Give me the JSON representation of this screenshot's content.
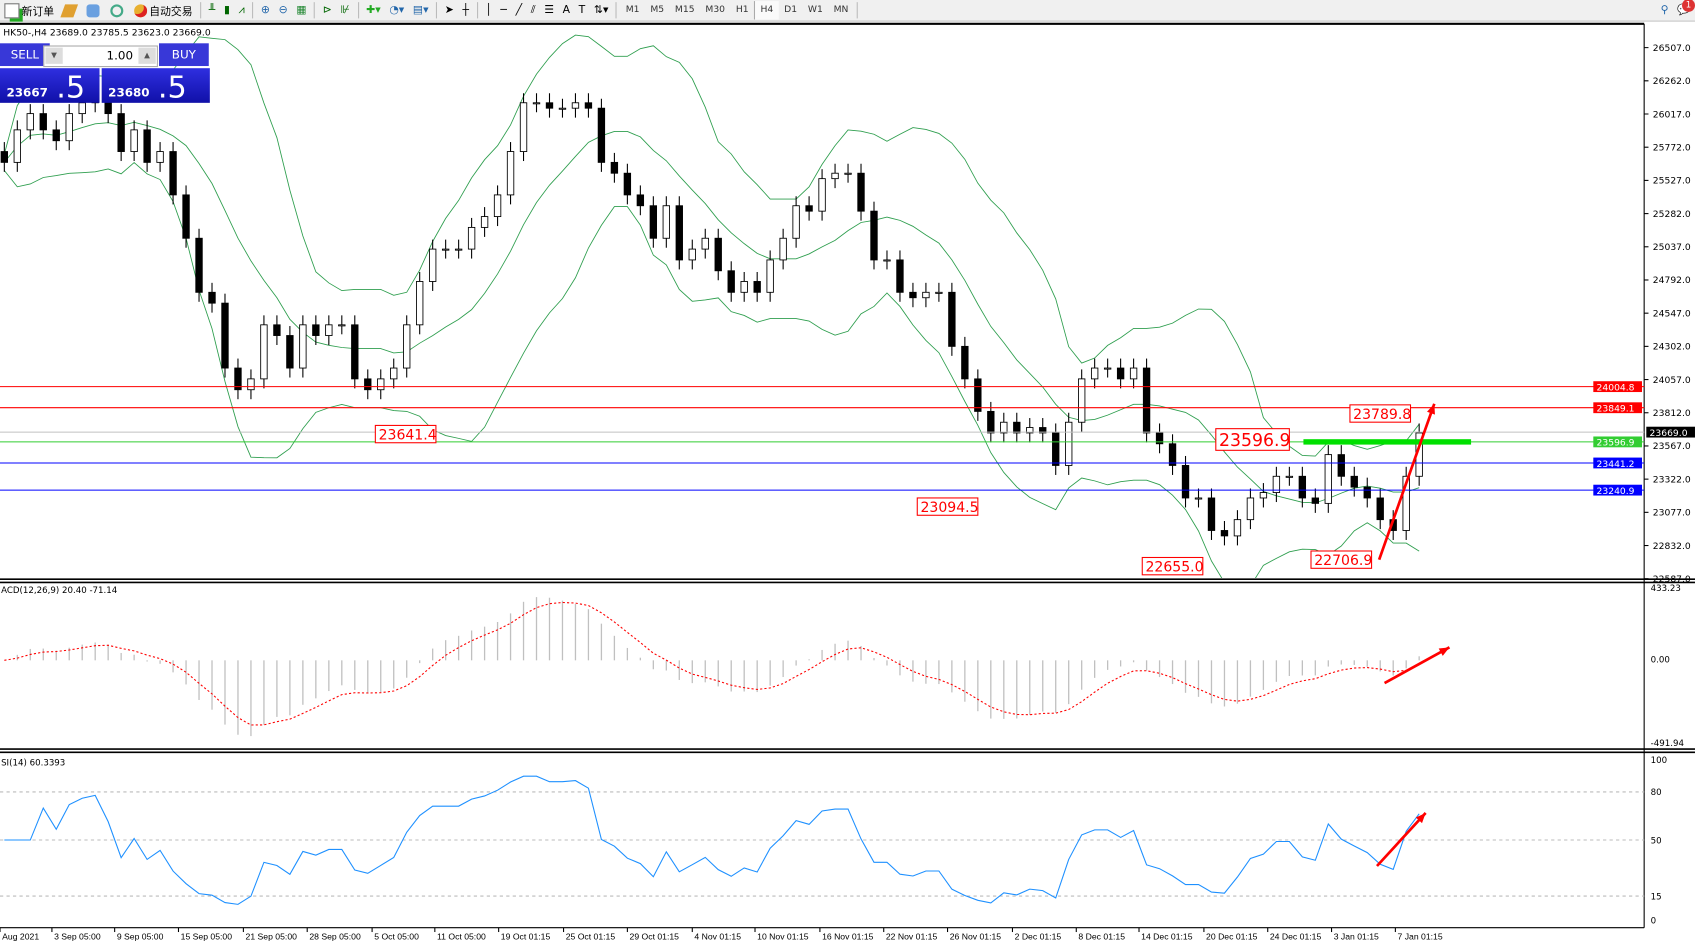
{
  "toolbar": {
    "new_order": "新订单",
    "auto_trading": "自动交易",
    "timeframes": [
      "M1",
      "M5",
      "M15",
      "M30",
      "H1",
      "H4",
      "D1",
      "W1",
      "MN"
    ],
    "active_timeframe": "H4",
    "notification_count": "1"
  },
  "chart": {
    "header": "HK50-,H4  23689.0 23785.5 23623.0 23669.0",
    "trade_panel": {
      "sell_label": "SELL",
      "buy_label": "BUY",
      "lot": "1.00",
      "bid_main": "23667",
      "bid_frac": ".5",
      "ask_main": "23680",
      "ask_frac": ".5"
    },
    "price_axis": [
      "26507.0",
      "26262.0",
      "26017.0",
      "25772.0",
      "25527.0",
      "25282.0",
      "25037.0",
      "24792.0",
      "24547.0",
      "24302.0",
      "24057.0",
      "23812.0",
      "23567.0",
      "23322.0",
      "23077.0",
      "22832.0",
      "22587.0"
    ],
    "horizontal_lines": [
      {
        "price": 24004.8,
        "label": "24004.8",
        "color": "#ff0000"
      },
      {
        "price": 23849.1,
        "label": "23849.1",
        "color": "#ff0000"
      },
      {
        "price": 23669.0,
        "label": "23669.0",
        "color": "#000000",
        "line": "#c0c0c0"
      },
      {
        "price": 23596.9,
        "label": "23596.9",
        "color": "#32cd32"
      },
      {
        "price": 23441.2,
        "label": "23441.2",
        "color": "#0000ff"
      },
      {
        "price": 23240.9,
        "label": "23240.9",
        "color": "#0000ff"
      }
    ],
    "price_labels": [
      {
        "text": "23641.4",
        "price": 23641.4
      },
      {
        "text": "23094.5",
        "price": 23094.5
      },
      {
        "text": "22655.0",
        "price": 22655.0
      },
      {
        "text": "22706.9",
        "price": 22706.9
      },
      {
        "text": "23789.8",
        "price": 23789.8
      },
      {
        "text": "23596.9",
        "price": 23596.9
      }
    ],
    "closes": [
      25660,
      25900,
      26020,
      25900,
      25820,
      26020,
      26100,
      26139,
      26020,
      25740,
      25900,
      25660,
      25740,
      25420,
      25100,
      24701,
      24621,
      24142,
      23982,
      24062,
      24461,
      24382,
      24142,
      24461,
      24382,
      24461,
      24461,
      24062,
      23982,
      24062,
      24142,
      24461,
      24781,
      25020,
      25020,
      25020,
      25180,
      25260,
      25420,
      25740,
      26100,
      26100,
      26060,
      26060,
      26100,
      26060,
      25660,
      25580,
      25420,
      25340,
      25100,
      25340,
      24940,
      25020,
      25100,
      24860,
      24701,
      24781,
      24701,
      24940,
      25100,
      25340,
      25300,
      25540,
      25580,
      25580,
      25300,
      24940,
      24940,
      24701,
      24661,
      24701,
      24701,
      24302,
      24062,
      23822,
      23663,
      23742,
      23663,
      23703,
      23663,
      23423,
      23742,
      24062,
      24142,
      24142,
      24062,
      24142,
      23663,
      23583,
      23423,
      23183,
      23183,
      22943,
      22903,
      23023,
      23183,
      23223,
      23343,
      23343,
      23183,
      23143,
      23503,
      23343,
      23263,
      23183,
      23023,
      22943,
      23343,
      23663
    ],
    "bands": "Bollinger",
    "band_color": "#2e9e4e"
  },
  "macd": {
    "label": "ACD(12,26,9) 20.40 -71.14",
    "max": "433.23",
    "zero": "0.00",
    "min": "-491.94",
    "histogram_color": "#c0c0c0",
    "signal_color": "#ff0000"
  },
  "rsi": {
    "label": "SI(14) 60.3393",
    "levels": [
      "100",
      "80",
      "50",
      "15",
      "0"
    ],
    "line_color": "#1e90ff"
  },
  "time_axis": [
    "Aug 2021",
    "3 Sep 05:00",
    "9 Sep 05:00",
    "15 Sep 05:00",
    "21 Sep 05:00",
    "28 Sep 05:00",
    "5 Oct 05:00",
    "11 Oct 05:00",
    "19 Oct 01:15",
    "25 Oct 01:15",
    "29 Oct 01:15",
    "4 Nov 01:15",
    "10 Nov 01:15",
    "16 Nov 01:15",
    "22 Nov 01:15",
    "26 Nov 01:15",
    "2 Dec 01:15",
    "8 Dec 01:15",
    "14 Dec 01:15",
    "20 Dec 01:15",
    "24 Dec 01:15",
    "3 Jan 01:15",
    "7 Jan 01:15"
  ],
  "annotation_color": "#ff0000"
}
